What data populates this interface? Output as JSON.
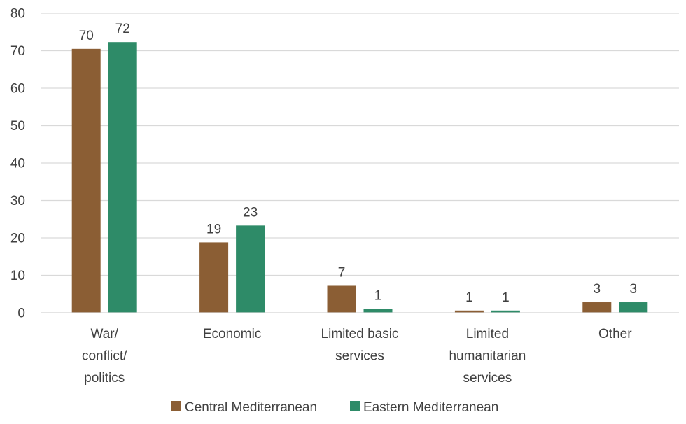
{
  "chart_data": {
    "type": "bar",
    "categories": [
      [
        "War/",
        "conflict/",
        "politics"
      ],
      [
        "Economic"
      ],
      [
        "Limited basic",
        "services"
      ],
      [
        "Limited",
        "humanitarian",
        "services"
      ],
      [
        "Other"
      ]
    ],
    "series": [
      {
        "name": "Central Mediterranean",
        "color": "#8B5E34",
        "values": [
          70.5,
          18.8,
          7.2,
          0.6,
          2.8
        ],
        "labels": [
          "70",
          "19",
          "7",
          "1",
          "3"
        ]
      },
      {
        "name": "Eastern Mediterranean",
        "color": "#2E8B68",
        "values": [
          72.3,
          23.3,
          1.0,
          0.6,
          2.8
        ],
        "labels": [
          "72",
          "23",
          "1",
          "1",
          "3"
        ]
      }
    ],
    "ylim": [
      0,
      80
    ],
    "yticks": [
      0,
      10,
      20,
      30,
      40,
      50,
      60,
      70,
      80
    ],
    "grid": true,
    "legend": "bottom-center",
    "title": "",
    "xlabel": "",
    "ylabel": ""
  }
}
